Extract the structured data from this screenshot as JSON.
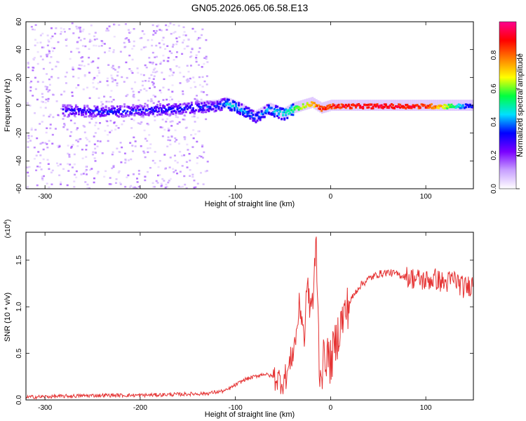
{
  "title": "GN05.2026.065.06.58.E13",
  "chart_data": [
    {
      "type": "heatmap",
      "name": "spectrogram",
      "xlabel": "Height of straight line (km)",
      "ylabel": "Frequency (Hz)",
      "xlim": [
        -320,
        150
      ],
      "ylim": [
        -60,
        60
      ],
      "xticks": [
        -300,
        -200,
        -100,
        0,
        100
      ],
      "yticks": [
        -60,
        -40,
        -20,
        0,
        20,
        40,
        60
      ],
      "colorbar": {
        "label": "Normalized spectral amplitude",
        "ticks": [
          "0.0",
          "0.2",
          "0.4",
          "0.6",
          "0.8"
        ],
        "tick_values": [
          0.0,
          0.2,
          0.4,
          0.6,
          0.8
        ],
        "range": [
          0,
          1
        ],
        "colormap": [
          "#ffffff",
          "#c8a0ff",
          "#7a00ff",
          "#0000ff",
          "#00e0ff",
          "#00ff40",
          "#ffff00",
          "#ff8000",
          "#ff0000",
          "#ff0090"
        ]
      },
      "ridge": [
        {
          "x": -280,
          "y": -3,
          "amp": 0.3
        },
        {
          "x": -240,
          "y": -4,
          "amp": 0.35
        },
        {
          "x": -200,
          "y": -3,
          "amp": 0.33
        },
        {
          "x": -160,
          "y": -2,
          "amp": 0.35
        },
        {
          "x": -120,
          "y": 0,
          "amp": 0.35
        },
        {
          "x": -110,
          "y": 2,
          "amp": 0.45
        },
        {
          "x": -95,
          "y": -2,
          "amp": 0.45
        },
        {
          "x": -80,
          "y": -8,
          "amp": 0.4
        },
        {
          "x": -65,
          "y": -2,
          "amp": 0.45
        },
        {
          "x": -50,
          "y": -6,
          "amp": 0.5
        },
        {
          "x": -40,
          "y": -2,
          "amp": 0.55
        },
        {
          "x": -30,
          "y": 0,
          "amp": 0.7
        },
        {
          "x": -20,
          "y": 2,
          "amp": 0.75
        },
        {
          "x": -10,
          "y": -2,
          "amp": 0.9
        },
        {
          "x": 0,
          "y": 0,
          "amp": 0.9
        },
        {
          "x": 50,
          "y": 0,
          "amp": 0.95
        },
        {
          "x": 100,
          "y": 0,
          "amp": 0.9
        },
        {
          "x": 150,
          "y": 0,
          "amp": 0.3
        }
      ]
    },
    {
      "type": "line",
      "name": "snr",
      "xlabel": "Height of straight line (km)",
      "ylabel": "SNR (10 * v/v)",
      "y_multiplier": "(x10",
      "y_multiplier_exp": "4",
      "y_multiplier_close": ")",
      "xlim": [
        -320,
        150
      ],
      "ylim": [
        0,
        1.8
      ],
      "xticks": [
        -300,
        -200,
        -100,
        0,
        100
      ],
      "yticks": [
        "0.0",
        "0.5",
        "1.0",
        "1.5"
      ],
      "ytick_values": [
        0.0,
        0.5,
        1.0,
        1.5
      ],
      "line_color": "#e53333",
      "series": [
        {
          "name": "SNR",
          "x": [
            -320,
            -280,
            -240,
            -200,
            -160,
            -130,
            -110,
            -100,
            -90,
            -80,
            -70,
            -60,
            -50,
            -45,
            -40,
            -36,
            -33,
            -30,
            -27,
            -25,
            -22,
            -18,
            -15,
            -12,
            -10,
            -5,
            0,
            10,
            20,
            30,
            40,
            50,
            60,
            70,
            80,
            90,
            100,
            110,
            120,
            130,
            140,
            150
          ],
          "y": [
            0.03,
            0.04,
            0.05,
            0.05,
            0.06,
            0.07,
            0.1,
            0.16,
            0.22,
            0.25,
            0.28,
            0.25,
            0.2,
            0.3,
            0.5,
            0.7,
            1.0,
            0.9,
            0.6,
            1.3,
            1.0,
            1.1,
            1.7,
            0.4,
            0.3,
            0.5,
            0.4,
            0.8,
            1.05,
            1.22,
            1.3,
            1.35,
            1.37,
            1.35,
            1.32,
            1.3,
            1.28,
            1.3,
            1.25,
            1.3,
            1.2,
            1.25
          ]
        }
      ]
    }
  ]
}
